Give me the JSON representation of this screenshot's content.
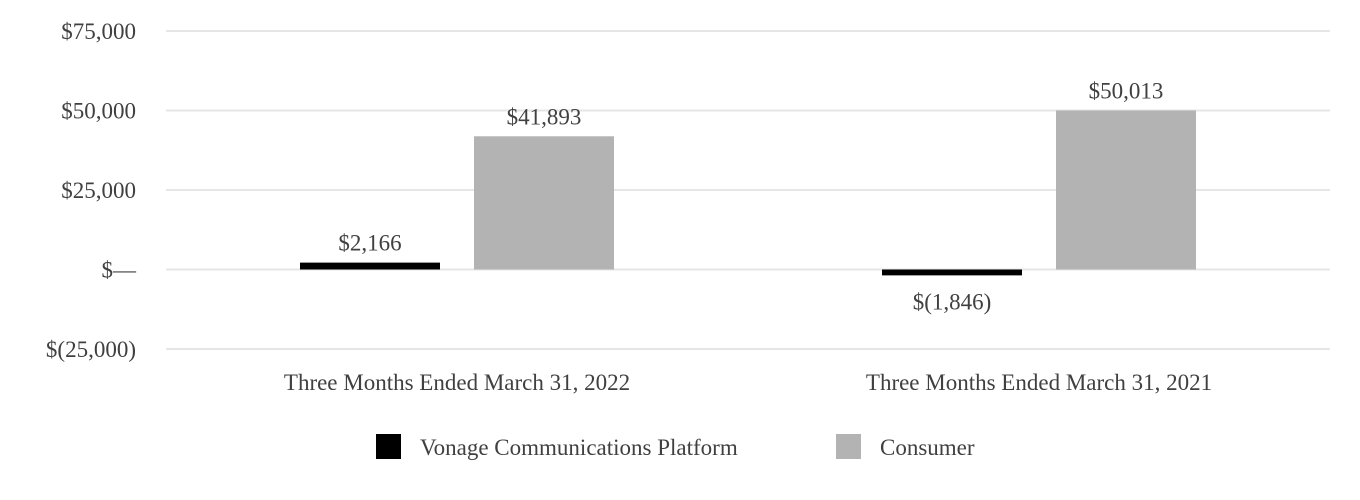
{
  "chart_data": {
    "type": "bar",
    "categories": [
      "Three Months Ended March 31, 2022",
      "Three Months Ended March 31, 2021"
    ],
    "series": [
      {
        "name": "Vonage Communications Platform",
        "values": [
          2166,
          -1846
        ],
        "labels": [
          "$2,166",
          "$(1,846)"
        ],
        "color": "#000000"
      },
      {
        "name": "Consumer",
        "values": [
          41893,
          50013
        ],
        "labels": [
          "$41,893",
          "$50,013"
        ],
        "color": "#b3b3b3"
      }
    ],
    "ylim": [
      -25000,
      75000
    ],
    "yticks": [
      75000,
      50000,
      25000,
      0,
      -25000
    ],
    "ytick_labels": [
      "$75,000",
      "$50,000",
      "$25,000",
      "$—",
      "$(25,000)"
    ],
    "grid": true,
    "legend_position": "bottom"
  }
}
